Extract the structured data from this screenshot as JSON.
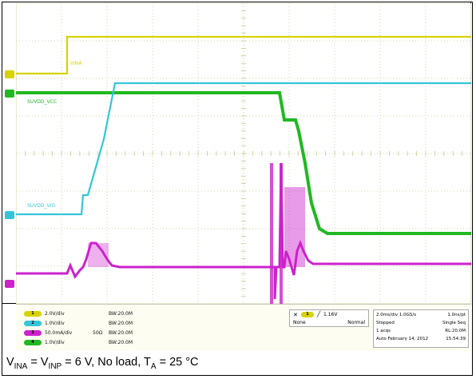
{
  "colors": {
    "ch1": "#d7d200",
    "ch2": "#33c5d9",
    "ch3": "#cc22cc",
    "ch4": "#21b821",
    "grid": "#c9c993",
    "bg": "#ffffff"
  },
  "traces": {
    "ch1_label": "VINA",
    "ch2_label": "SUVDD_VIO",
    "ch3_label": "SUVDD_VCC",
    "ch4_label": ""
  },
  "channels": [
    {
      "badge": "1",
      "scale": "2.0V/div",
      "impedance": "",
      "bandwidth": "BW:20.0M",
      "color": "#d7d200"
    },
    {
      "badge": "2",
      "scale": "1.0V/div",
      "impedance": "",
      "bandwidth": "BW:20.0M",
      "color": "#33c5d9"
    },
    {
      "badge": "3",
      "scale": "50.0mA/div",
      "impedance": "50Ω",
      "bandwidth": "BW:20.0M",
      "color": "#cc22cc"
    },
    {
      "badge": "4",
      "scale": "1.0V/div",
      "impedance": "",
      "bandwidth": "BW:20.0M",
      "color": "#21b821"
    }
  ],
  "trigger": {
    "source": "1",
    "level": "1.16V",
    "mode_left": "None",
    "mode_right": "Normal"
  },
  "acquisition": {
    "timebase": "2.0ms/div",
    "sample_rate": "1.0GS/s",
    "resolution": "1.0ns/pt",
    "state": "Stopped",
    "seq": "Single Seq",
    "acqs": "1 acqs",
    "record": "RL:20.0M",
    "mode": "Auto",
    "date": "February 14, 2012",
    "time": "15:54:39"
  },
  "caption": {
    "v1": "V",
    "v1_sub": "INA",
    "eq": " = V",
    "v2_sub": "INP",
    "rest": " = 6 V, No load, T",
    "ta_sub": "A",
    "tail": " = 25 °C"
  }
}
